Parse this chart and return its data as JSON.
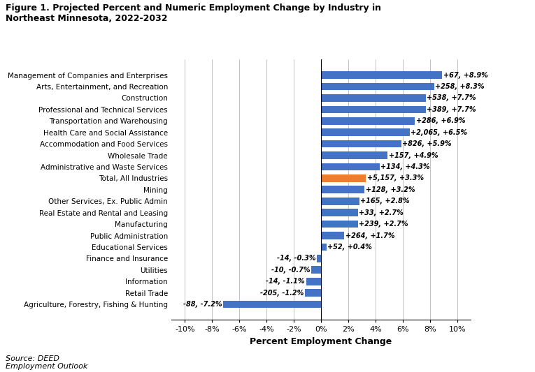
{
  "title": "Figure 1. Projected Percent and Numeric Employment Change by Industry in\nNortheast Minnesota, 2022-2032",
  "categories": [
    "Management of Companies and Enterprises",
    "Arts, Entertainment, and Recreation",
    "Construction",
    "Professional and Technical Services",
    "Transportation and Warehousing",
    "Health Care and Social Assistance",
    "Accommodation and Food Services",
    "Wholesale Trade",
    "Administrative and Waste Services",
    "Total, All Industries",
    "Mining",
    "Other Services, Ex. Public Admin",
    "Real Estate and Rental and Leasing",
    "Manufacturing",
    "Public Administration",
    "Educational Services",
    "Finance and Insurance",
    "Utilities",
    "Information",
    "Retail Trade",
    "Agriculture, Forestry, Fishing & Hunting"
  ],
  "percent_values": [
    8.9,
    8.3,
    7.7,
    7.7,
    6.9,
    6.5,
    5.9,
    4.9,
    4.3,
    3.3,
    3.2,
    2.8,
    2.7,
    2.7,
    1.7,
    0.4,
    -0.3,
    -0.7,
    -1.1,
    -1.2,
    -7.2
  ],
  "numeric_values": [
    67,
    258,
    538,
    389,
    286,
    2065,
    826,
    157,
    134,
    5157,
    128,
    165,
    33,
    239,
    264,
    52,
    -14,
    -10,
    -14,
    -205,
    -88
  ],
  "bar_colors": [
    "#4472C4",
    "#4472C4",
    "#4472C4",
    "#4472C4",
    "#4472C4",
    "#4472C4",
    "#4472C4",
    "#4472C4",
    "#4472C4",
    "#ED7D31",
    "#4472C4",
    "#4472C4",
    "#4472C4",
    "#4472C4",
    "#4472C4",
    "#4472C4",
    "#4472C4",
    "#4472C4",
    "#4472C4",
    "#4472C4",
    "#4472C4"
  ],
  "xlabel": "Percent Employment Change",
  "xlim": [
    -11,
    11
  ],
  "xticks": [
    -10,
    -8,
    -6,
    -4,
    -2,
    0,
    2,
    4,
    6,
    8,
    10
  ],
  "xtick_labels": [
    "-10%",
    "-8%",
    "-6%",
    "-4%",
    "-2%",
    "0%",
    "2%",
    "4%",
    "6%",
    "8%",
    "10%"
  ],
  "source_text": "Source: DEED\nEmployment Outlook",
  "background_color": "#ffffff"
}
